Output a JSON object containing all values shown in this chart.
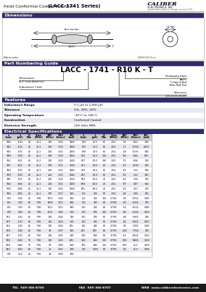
{
  "title_normal": "Axial Conformal Coated Inductor",
  "title_bold": "(LACC-1741 Series)",
  "company": "CALIBER",
  "company_sub": "ELECTRONICS, INC.",
  "company_sub2": "specifications subject to change  version 1.0.03",
  "bg_color": "#ffffff",
  "section_header_color": "#2c2c6e",
  "section_header_text_color": "#ffffff",
  "table_alt_color": "#e8e8f0",
  "dimensions_section": "Dimensions",
  "part_numbering_section": "Part Numbering Guide",
  "features_section": "Features",
  "electrical_section": "Electrical Specifications",
  "part_number_display": "LACC - 1741 - R10 K - T",
  "features": [
    [
      "Inductance Range",
      "0.1 μH to 1,000 μH"
    ],
    [
      "Tolerance",
      "5%, 10%, 20%"
    ],
    [
      "Operating Temperature",
      "-20°C to +85°C"
    ],
    [
      "Construction",
      "Conformal Coated"
    ],
    [
      "Dielectric Strength",
      "250 Volts RMS"
    ]
  ],
  "elec_data": [
    [
      "R10",
      "0.10",
      "40",
      "25.2",
      "300",
      "0.10",
      "1400",
      "1R0",
      "12.5",
      "60",
      "2.52",
      "1.0",
      "0.63",
      "600"
    ],
    [
      "R12",
      "0.12",
      "40",
      "25.2",
      "300",
      "0.10",
      "1400",
      "1R5",
      "15.0",
      "60",
      "2.52",
      "1.7",
      "0.750",
      "4000"
    ],
    [
      "R15",
      "0.15",
      "40",
      "25.2",
      "300",
      "0.10",
      "1400",
      "1R8",
      "18.0",
      "60",
      "2.52",
      "1.8",
      "0.375",
      "800"
    ],
    [
      "R18",
      "0.18",
      "40",
      "25.2",
      "300",
      "0.10",
      "1400",
      "2R2",
      "22.0",
      "100",
      "2.52",
      "0.8",
      "0.84",
      "470"
    ],
    [
      "R22",
      "0.22",
      "40",
      "25.2",
      "300",
      "0.10",
      "1600",
      "2R7",
      "27.0",
      "100",
      "2.52",
      "7.2",
      "0.96",
      "300"
    ],
    [
      "R27",
      "0.27",
      "40",
      "25.2",
      "270",
      "0.11",
      "1500",
      "3R3",
      "33.0",
      "60",
      "2.52",
      "0.3",
      "1.076",
      "270"
    ],
    [
      "R33",
      "0.33",
      "40",
      "25.2",
      "260",
      "0.12",
      "1380",
      "3R9",
      "39.0",
      "60",
      "2.52",
      "0.3",
      "1.12",
      "300"
    ],
    [
      "R39",
      "0.39",
      "40",
      "25.2",
      "250",
      "0.13",
      "1280",
      "4R7",
      "47.0",
      "60",
      "2.52",
      "0.2",
      "1.32",
      "881"
    ],
    [
      "R47",
      "0.47",
      "40",
      "25.2",
      "220",
      "0.14",
      "1050",
      "5R6",
      "56.0",
      "40",
      "2.52",
      "6.2",
      "7.04",
      "300"
    ],
    [
      "R56",
      "0.56",
      "40",
      "25.2",
      "200",
      "0.15",
      "1100",
      "6R8",
      "68.0",
      "40",
      "2.52",
      "9.7",
      "1.87",
      "850"
    ],
    [
      "R68",
      "0.68",
      "40",
      "25.2",
      "180",
      "0.16",
      "1060",
      "8R2",
      "82.0",
      "40",
      "2.52",
      "9.3",
      "1.63",
      "200"
    ],
    [
      "R82",
      "0.82",
      "40",
      "25.2",
      "170",
      "0.17",
      "860",
      "101",
      "100",
      "50",
      "2.52",
      "4.8",
      "1.90",
      "275"
    ],
    [
      "1R0",
      "1.00",
      "40",
      "7.96",
      "1757",
      "0.18",
      "860",
      "151",
      "150",
      "100",
      "0.756",
      "3.8",
      "0.751",
      "1085"
    ],
    [
      "1R2",
      "1.20",
      "60",
      "7.96",
      "1169",
      "0.21",
      "880",
      "181",
      "180",
      "80",
      "0.706",
      "3.0",
      "6.201",
      "170"
    ],
    [
      "1R5",
      "1.50",
      "60",
      "7.96",
      "1311",
      "0.23",
      "870",
      "221",
      "220",
      "80",
      "0.795",
      "5.9",
      "40.61",
      "1685"
    ],
    [
      "1R8",
      "1.80",
      "60",
      "7.96",
      "1211",
      "0.26",
      "520",
      "271",
      "270",
      "200",
      "0.750",
      "0.8",
      "6.101",
      "1105"
    ],
    [
      "2R2",
      "2.20",
      "60",
      "7.96",
      "110",
      "0.28",
      "740",
      "271",
      "270",
      "60",
      "0.795",
      "2.8",
      "5.901",
      "140"
    ],
    [
      "2R7",
      "2.70",
      "60",
      "7.96",
      "180",
      "0.50",
      "520",
      "331",
      "330",
      "50",
      "0.795",
      "2.8",
      "6.801",
      "1107"
    ],
    [
      "3R3",
      "3.30",
      "60",
      "7.96",
      "180",
      "0.54",
      "475",
      "391",
      "390",
      "60",
      "0.795",
      "3.8",
      "7.001",
      "1095"
    ],
    [
      "3R9",
      "3.90",
      "40",
      "7.96",
      "90",
      "0.37",
      "645",
      "471",
      "470",
      "80",
      "0.795",
      "3.20",
      "7.750",
      "120"
    ],
    [
      "4R7",
      "4.70",
      "60",
      "7.96",
      "180",
      "0.36",
      "640",
      "541",
      "560",
      "80",
      "0.795",
      "6.1",
      "8.501",
      "1050"
    ],
    [
      "5R6",
      "5.60",
      "75",
      "7.96",
      "180",
      "0.43",
      "420",
      "681",
      "680",
      "100",
      "0.795",
      "1.85",
      "9.801",
      "1120"
    ],
    [
      "6R8",
      "6.80",
      "75",
      "7.96",
      "97",
      "0.48",
      "600",
      "821",
      "820",
      "100",
      "0.795",
      "1.85",
      "10.5",
      "1005"
    ],
    [
      "8R2",
      "8.20",
      "80",
      "7.96",
      "20",
      "0.52",
      "600",
      "102",
      "1000",
      "50",
      "0.795",
      "1.8",
      "16.0",
      "1006"
    ],
    [
      "100",
      "10.0",
      "40",
      "7.96",
      "21",
      "0.58",
      "500",
      "",
      "",
      "",
      "",
      "",
      "",
      ""
    ]
  ],
  "footer_tel": "TEL  949-366-8700",
  "footer_fax": "FAX  949-366-8707",
  "footer_web": "WEB  www.caliberelectronics.com",
  "footer_bg": "#1a1a1a",
  "footer_text_color": "#ffffff"
}
